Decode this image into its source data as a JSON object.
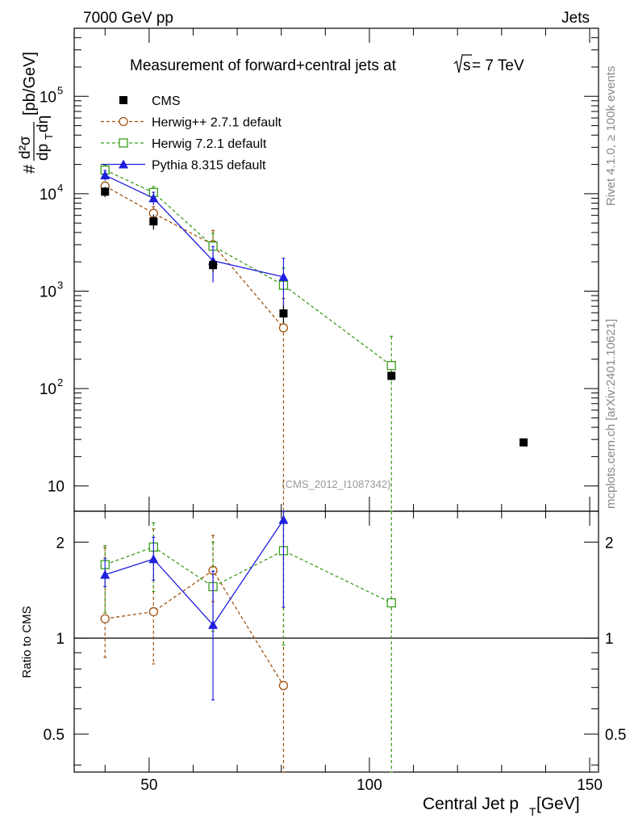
{
  "header": {
    "left": "7000 GeV pp",
    "right": "Jets"
  },
  "side": {
    "rivet": "Rivet 4.1.0, ≥ 100k events",
    "mcplots": "mcplots.cern.ch [arXiv:2401.10621]"
  },
  "colors": {
    "cms": "#000000",
    "herwigpp": "#a0520f",
    "herwig7": "#3b9c1a",
    "pythia": "#1f1fe0"
  },
  "chart_data": [
    {
      "type": "line",
      "scale": "log",
      "title": "Measurement of forward+central jets at √s= 7 TeV",
      "title_prefix": "Measurement of forward+central jets at",
      "title_sqrt": "s",
      "title_suffix": "= 7 TeV",
      "ylabel": "# d²σ / dp_T dη [pb/GeV]",
      "ylabel_parts": {
        "hash": "#",
        "num": "d²σ",
        "den": "dp",
        "den_sub": "T",
        "den_tail": "dη",
        "unit": "[pb/GeV]"
      },
      "xlim": [
        33,
        152
      ],
      "ylim": [
        5.5,
        500000
      ],
      "y_ticks": [
        {
          "value": 10,
          "label": "10"
        },
        {
          "value": 100,
          "label": "10²",
          "base": "10",
          "exp": "2"
        },
        {
          "value": 1000,
          "label": "10³",
          "base": "10",
          "exp": "3"
        },
        {
          "value": 10000,
          "label": "10⁴",
          "base": "10",
          "exp": "4"
        },
        {
          "value": 100000,
          "label": "10⁵",
          "base": "10",
          "exp": "5"
        }
      ],
      "watermark": "(CMS_2012_I1087342)",
      "legend_position": "top-left",
      "series": [
        {
          "key": "cms",
          "name": "CMS",
          "marker": "square-filled",
          "x": [
            40,
            51,
            64.5,
            80.5,
            105,
            135
          ],
          "y": [
            10500,
            5200,
            1850,
            590,
            135,
            28
          ],
          "err": [
            0.12,
            0.18,
            0.16,
            0.2,
            0.1,
            0.05
          ]
        },
        {
          "key": "herwigpp",
          "name": "Herwig++ 2.7.1 default",
          "marker": "circle-open",
          "dashed": true,
          "x": [
            40,
            51,
            64.5,
            80.5
          ],
          "y": [
            12000,
            6300,
            3000,
            420
          ],
          "err": [
            0.1,
            0.17,
            0.4,
            1.0
          ]
        },
        {
          "key": "herwig7",
          "name": "Herwig 7.2.1 default",
          "marker": "square-open",
          "dashed": true,
          "x": [
            40,
            51,
            64.5,
            80.5,
            105
          ],
          "y": [
            17500,
            10300,
            2900,
            1150,
            172
          ],
          "err": [
            0.12,
            0.15,
            0.35,
            0.5,
            1.0
          ]
        },
        {
          "key": "pythia",
          "name": "Pythia 8.315 default",
          "marker": "triangle-filled",
          "dashed": false,
          "x": [
            40,
            51,
            64.5,
            80.5
          ],
          "y": [
            15500,
            9000,
            2050,
            1400
          ],
          "err": [
            0.12,
            0.15,
            0.4,
            0.55
          ]
        }
      ]
    },
    {
      "type": "line",
      "scale": "log",
      "ylabel": "Ratio to CMS",
      "xlabel": "Central Jet p_T [GeV]",
      "xlabel_parts": {
        "pre": "Central Jet p",
        "sub": "T",
        "post": " [GeV]"
      },
      "xlim": [
        33,
        152
      ],
      "ylim": [
        0.38,
        2.5
      ],
      "reference_line": 1,
      "x_ticks": [
        {
          "value": 50,
          "label": "50"
        },
        {
          "value": 100,
          "label": "100"
        },
        {
          "value": 150,
          "label": "150"
        }
      ],
      "y_ticks": [
        {
          "value": 0.5,
          "label": "0.5"
        },
        {
          "value": 1,
          "label": "1"
        },
        {
          "value": 2,
          "label": "2"
        }
      ],
      "series": [
        {
          "key": "herwigpp",
          "name": "Herwig++ 2.7.1 default",
          "marker": "circle-open",
          "dashed": true,
          "x": [
            40,
            51,
            64.5,
            80.5
          ],
          "y": [
            1.15,
            1.21,
            1.63,
            0.71
          ],
          "lo": [
            0.87,
            0.83,
            1.3,
            0.3
          ],
          "hi": [
            1.92,
            2.2,
            2.1,
            3.0
          ]
        },
        {
          "key": "herwig7",
          "name": "Herwig 7.2.1 default",
          "marker": "square-open",
          "dashed": true,
          "x": [
            40,
            51,
            64.5,
            80.5,
            105
          ],
          "y": [
            1.7,
            1.93,
            1.45,
            1.88,
            1.29
          ],
          "lo": [
            1.2,
            1.4,
            1.05,
            0.95,
            0.3
          ],
          "hi": [
            1.95,
            2.3,
            2.0,
            2.5,
            3.0
          ]
        },
        {
          "key": "pythia",
          "name": "Pythia 8.315 default",
          "marker": "triangle-filled",
          "dashed": false,
          "x": [
            40,
            51,
            64.5,
            80.5
          ],
          "y": [
            1.58,
            1.77,
            1.1,
            2.35
          ],
          "lo": [
            1.45,
            1.52,
            0.64,
            1.25
          ],
          "hi": [
            1.78,
            2.07,
            1.62,
            2.5
          ]
        }
      ]
    }
  ]
}
